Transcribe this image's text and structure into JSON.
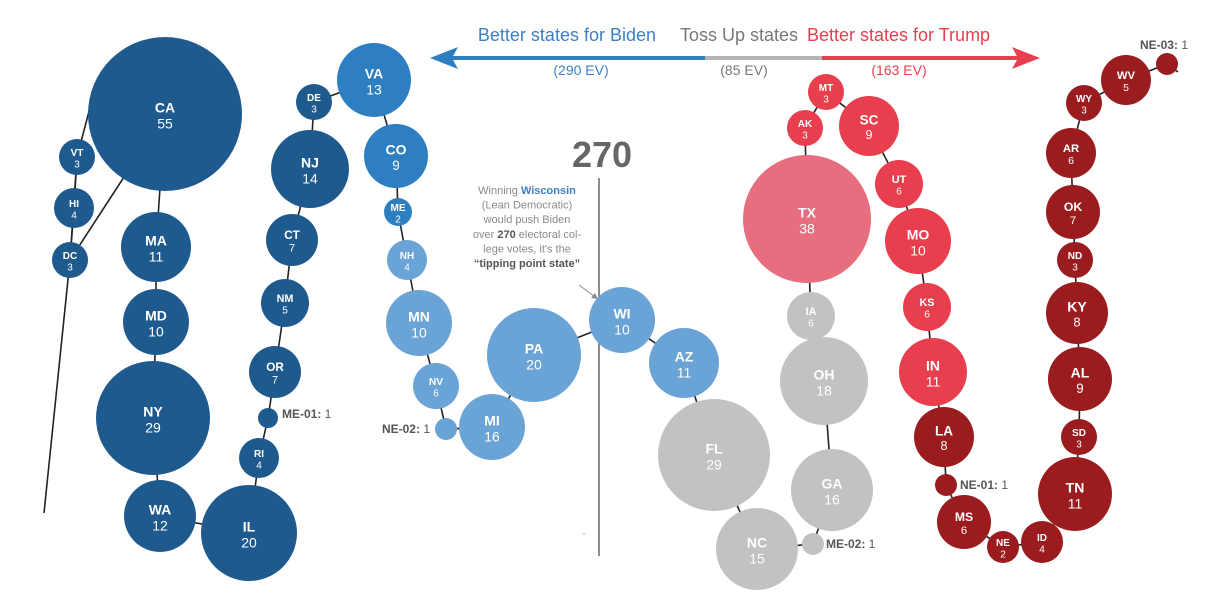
{
  "header": {
    "biden_label": "Better states for Biden",
    "biden_ev": "(290 EV)",
    "toss_label": "Toss Up states",
    "toss_ev": "(85 EV)",
    "trump_label": "Better states for Trump",
    "trump_ev": "(163 EV)"
  },
  "threshold": {
    "label": "270"
  },
  "annotation": {
    "lines": [
      [
        "Winning ",
        {
          "b": "Wisconsin"
        }
      ],
      [
        "(Lean Democratic)"
      ],
      [
        "would push Biden"
      ],
      [
        "over ",
        {
          "k": "270"
        },
        " electoral col-"
      ],
      [
        "lege votes, it's the"
      ],
      [
        {
          "k": "“tipping point state”"
        }
      ]
    ]
  },
  "colors": {
    "solid_dem": "#1f5a8f",
    "likely_dem": "#2e7fc2",
    "lean_dem": "#6aa3d5",
    "toss_up": "#c2c2c2",
    "lean_rep": "#e76e7e",
    "likely_rep": "#e83e4e",
    "solid_rep": "#9b1c1f",
    "biden_text": "#3b7fc4",
    "trump_text": "#e83e4e",
    "toss_text": "#777777"
  },
  "states": [
    {
      "abbr": "VT",
      "ev": "3",
      "cat": "solid_dem"
    },
    {
      "abbr": "HI",
      "ev": "4",
      "cat": "solid_dem"
    },
    {
      "abbr": "DC",
      "ev": "3",
      "cat": "solid_dem"
    },
    {
      "abbr": "CA",
      "ev": "55",
      "cat": "solid_dem"
    },
    {
      "abbr": "MA",
      "ev": "11",
      "cat": "solid_dem"
    },
    {
      "abbr": "MD",
      "ev": "10",
      "cat": "solid_dem"
    },
    {
      "abbr": "NY",
      "ev": "29",
      "cat": "solid_dem"
    },
    {
      "abbr": "WA",
      "ev": "12",
      "cat": "solid_dem"
    },
    {
      "abbr": "IL",
      "ev": "20",
      "cat": "solid_dem"
    },
    {
      "abbr": "RI",
      "ev": "4",
      "cat": "solid_dem"
    },
    {
      "abbr": "ME-01",
      "ev": "1",
      "cat": "solid_dem",
      "ext": true
    },
    {
      "abbr": "OR",
      "ev": "7",
      "cat": "solid_dem"
    },
    {
      "abbr": "NM",
      "ev": "5",
      "cat": "solid_dem"
    },
    {
      "abbr": "CT",
      "ev": "7",
      "cat": "solid_dem"
    },
    {
      "abbr": "NJ",
      "ev": "14",
      "cat": "solid_dem"
    },
    {
      "abbr": "DE",
      "ev": "3",
      "cat": "solid_dem"
    },
    {
      "abbr": "VA",
      "ev": "13",
      "cat": "likely_dem"
    },
    {
      "abbr": "CO",
      "ev": "9",
      "cat": "likely_dem"
    },
    {
      "abbr": "ME",
      "ev": "2",
      "cat": "likely_dem"
    },
    {
      "abbr": "NH",
      "ev": "4",
      "cat": "lean_dem"
    },
    {
      "abbr": "MN",
      "ev": "10",
      "cat": "lean_dem"
    },
    {
      "abbr": "NV",
      "ev": "6",
      "cat": "lean_dem"
    },
    {
      "abbr": "NE-02",
      "ev": "1",
      "cat": "lean_dem",
      "ext": true
    },
    {
      "abbr": "MI",
      "ev": "16",
      "cat": "lean_dem"
    },
    {
      "abbr": "PA",
      "ev": "20",
      "cat": "lean_dem"
    },
    {
      "abbr": "WI",
      "ev": "10",
      "cat": "lean_dem"
    },
    {
      "abbr": "AZ",
      "ev": "11",
      "cat": "lean_dem"
    },
    {
      "abbr": "FL",
      "ev": "29",
      "cat": "toss_up"
    },
    {
      "abbr": "NC",
      "ev": "15",
      "cat": "toss_up"
    },
    {
      "abbr": "ME-02",
      "ev": "1",
      "cat": "toss_up",
      "ext": true
    },
    {
      "abbr": "GA",
      "ev": "16",
      "cat": "toss_up"
    },
    {
      "abbr": "OH",
      "ev": "18",
      "cat": "toss_up"
    },
    {
      "abbr": "IA",
      "ev": "6",
      "cat": "toss_up"
    },
    {
      "abbr": "TX",
      "ev": "38",
      "cat": "lean_rep"
    },
    {
      "abbr": "AK",
      "ev": "3",
      "cat": "likely_rep"
    },
    {
      "abbr": "MT",
      "ev": "3",
      "cat": "likely_rep"
    },
    {
      "abbr": "SC",
      "ev": "9",
      "cat": "likely_rep"
    },
    {
      "abbr": "UT",
      "ev": "6",
      "cat": "likely_rep"
    },
    {
      "abbr": "MO",
      "ev": "10",
      "cat": "likely_rep"
    },
    {
      "abbr": "KS",
      "ev": "6",
      "cat": "likely_rep"
    },
    {
      "abbr": "IN",
      "ev": "11",
      "cat": "likely_rep"
    },
    {
      "abbr": "LA",
      "ev": "8",
      "cat": "solid_rep"
    },
    {
      "abbr": "NE-01",
      "ev": "1",
      "cat": "solid_rep",
      "ext": true
    },
    {
      "abbr": "MS",
      "ev": "6",
      "cat": "solid_rep"
    },
    {
      "abbr": "NE",
      "ev": "2",
      "cat": "solid_rep"
    },
    {
      "abbr": "ID",
      "ev": "4",
      "cat": "solid_rep"
    },
    {
      "abbr": "TN",
      "ev": "11",
      "cat": "solid_rep"
    },
    {
      "abbr": "SD",
      "ev": "3",
      "cat": "solid_rep"
    },
    {
      "abbr": "AL",
      "ev": "9",
      "cat": "solid_rep"
    },
    {
      "abbr": "KY",
      "ev": "8",
      "cat": "solid_rep"
    },
    {
      "abbr": "ND",
      "ev": "3",
      "cat": "solid_rep"
    },
    {
      "abbr": "OK",
      "ev": "7",
      "cat": "solid_rep"
    },
    {
      "abbr": "AR",
      "ev": "6",
      "cat": "solid_rep"
    },
    {
      "abbr": "WY",
      "ev": "3",
      "cat": "solid_rep"
    },
    {
      "abbr": "WV",
      "ev": "5",
      "cat": "solid_rep"
    },
    {
      "abbr": "NE-03",
      "ev": "1",
      "cat": "solid_rep",
      "ext": true
    }
  ]
}
